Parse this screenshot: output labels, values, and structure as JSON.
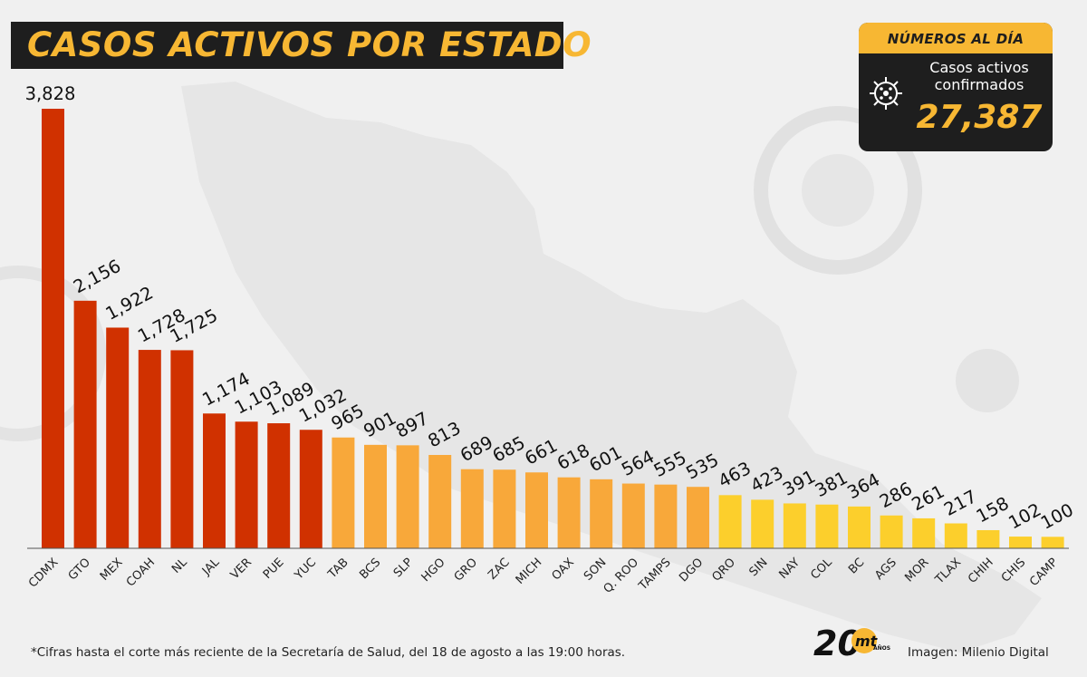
{
  "title": "CASOS ACTIVOS POR ESTADO",
  "summary": {
    "heading": "NÚMEROS AL DÍA",
    "label": "Casos activos confirmados",
    "total": "27,387"
  },
  "footnote": "*Cifras hasta el corte más reciente de la Secretaría de Salud, del 18 de agosto a las 19:00 horas.",
  "credit": "Imagen: Milenio Digital",
  "logo": {
    "number": "20",
    "brand": "mt",
    "sub": "AÑOS"
  },
  "colors": {
    "high": "#d03100",
    "mid": "#f8a83a",
    "low": "#fccf2c",
    "dark": "#1e1e1e",
    "accent": "#f7b733"
  },
  "chart_data": {
    "type": "bar",
    "categories": [
      "CDMX",
      "GTO",
      "MEX",
      "COAH",
      "NL",
      "JAL",
      "VER",
      "PUE",
      "YUC",
      "TAB",
      "BCS",
      "SLP",
      "HGO",
      "GRO",
      "ZAC",
      "MICH",
      "OAX",
      "SON",
      "Q. ROO",
      "TAMPS",
      "DGO",
      "QRO",
      "SIN",
      "NAY",
      "COL",
      "BC",
      "AGS",
      "MOR",
      "TLAX",
      "CHIH",
      "CHIS",
      "CAMP"
    ],
    "values": [
      3828,
      2156,
      1922,
      1728,
      1725,
      1174,
      1103,
      1089,
      1032,
      965,
      901,
      897,
      813,
      689,
      685,
      661,
      618,
      601,
      564,
      555,
      535,
      463,
      423,
      391,
      381,
      364,
      286,
      261,
      217,
      158,
      102,
      100
    ],
    "value_labels": [
      "3,828",
      "2,156",
      "1,922",
      "1,728",
      "1,725",
      "1,174",
      "1,103",
      "1,089",
      "1,032",
      "965",
      "901",
      "897",
      "813",
      "689",
      "685",
      "661",
      "618",
      "601",
      "564",
      "555",
      "535",
      "463",
      "423",
      "391",
      "381",
      "364",
      "286",
      "261",
      "217",
      "158",
      "102",
      "100"
    ],
    "bar_colors": [
      "high",
      "high",
      "high",
      "high",
      "high",
      "high",
      "high",
      "high",
      "high",
      "mid",
      "mid",
      "mid",
      "mid",
      "mid",
      "mid",
      "mid",
      "mid",
      "mid",
      "mid",
      "mid",
      "mid",
      "low",
      "low",
      "low",
      "low",
      "low",
      "low",
      "low",
      "low",
      "low",
      "low",
      "low"
    ],
    "ylim": [
      0,
      3828
    ],
    "grid": false,
    "legend": "none"
  }
}
